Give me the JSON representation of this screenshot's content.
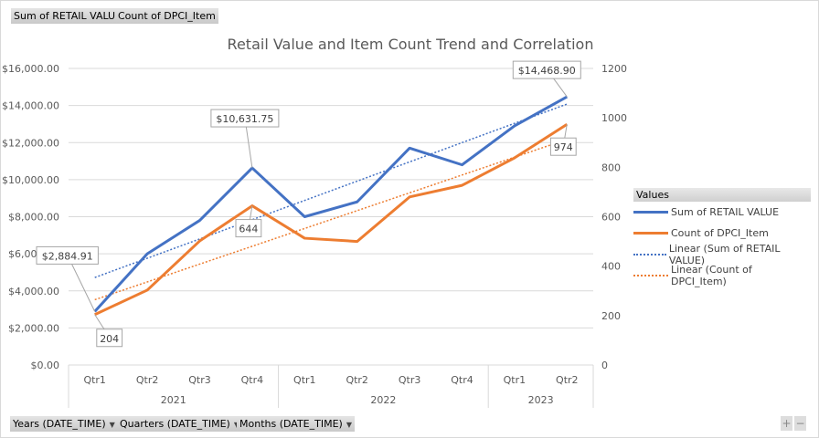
{
  "field_buttons": {
    "sum": "Sum of RETAIL VALUE",
    "count": "Count of DPCI_Item"
  },
  "axis_buttons": [
    "Years (DATE_TIME)",
    "Quarters (DATE_TIME)",
    "Months (DATE_TIME)"
  ],
  "zoom_buttons": {
    "plus": "+",
    "minus": "−"
  },
  "chart_data": {
    "type": "line",
    "title": "Retail Value and Item Count Trend and Correlation",
    "categories": [
      "Qtr1",
      "Qtr2",
      "Qtr3",
      "Qtr4",
      "Qtr1",
      "Qtr2",
      "Qtr3",
      "Qtr4",
      "Qtr1",
      "Qtr2"
    ],
    "groups": [
      {
        "label": "2021",
        "count": 4
      },
      {
        "label": "2022",
        "count": 4
      },
      {
        "label": "2023",
        "count": 2
      }
    ],
    "y_left": {
      "range": [
        0,
        16000
      ],
      "ticks": [
        "$0.00",
        "$2,000.00",
        "$4,000.00",
        "$6,000.00",
        "$8,000.00",
        "$10,000.00",
        "$12,000.00",
        "$14,000.00",
        "$16,000.00"
      ]
    },
    "y_right": {
      "range": [
        0,
        1200
      ],
      "ticks": [
        "0",
        "200",
        "400",
        "600",
        "800",
        "1000",
        "1200"
      ]
    },
    "series": [
      {
        "name": "Sum of RETAIL VALUE",
        "axis": "left",
        "color": "#4472C4",
        "values": [
          2884.91,
          6000,
          7800,
          10631.75,
          8000,
          8800,
          11700,
          10800,
          12900,
          14468.9
        ]
      },
      {
        "name": "Count of DPCI_Item",
        "axis": "right",
        "color": "#ED7D31",
        "values": [
          204,
          303,
          502,
          644,
          513,
          500,
          680,
          727,
          838,
          974
        ]
      }
    ],
    "trendlines": [
      {
        "name": "Linear (Sum of RETAIL VALUE)",
        "of": 0,
        "color": "#4472C4"
      },
      {
        "name": "Linear (Count of DPCI_Item)",
        "of": 1,
        "color": "#ED7D31"
      }
    ],
    "data_labels": [
      {
        "series": 0,
        "index": 0,
        "text": "$2,884.91"
      },
      {
        "series": 0,
        "index": 3,
        "text": "$10,631.75"
      },
      {
        "series": 0,
        "index": 9,
        "text": "$14,468.90"
      },
      {
        "series": 1,
        "index": 0,
        "text": "204"
      },
      {
        "series": 1,
        "index": 3,
        "text": "644"
      },
      {
        "series": 1,
        "index": 9,
        "text": "974"
      }
    ],
    "legend": {
      "title": "Values",
      "position": "right"
    },
    "grid": true
  }
}
